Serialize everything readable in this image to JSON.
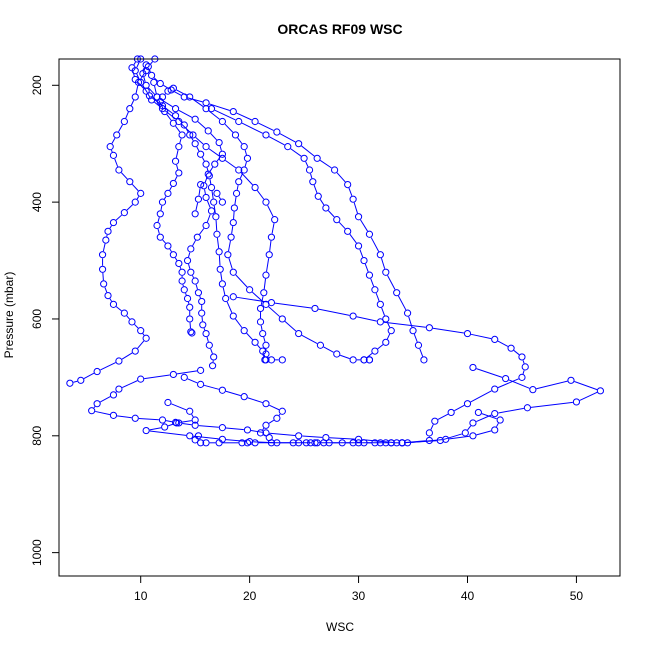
{
  "chart_data": {
    "type": "line",
    "title": "ORCAS RF09 WSC",
    "xlabel": "WSC",
    "ylabel": "Pressure (mbar)",
    "xlim": [
      2.5,
      54
    ],
    "ylim": [
      1040,
      155
    ],
    "y_reversed": true,
    "x_ticks": [
      10,
      20,
      30,
      40,
      50
    ],
    "y_ticks": [
      200,
      400,
      600,
      800,
      1000
    ],
    "grid": false,
    "marker": "open-circle",
    "color": "#0000ff",
    "series": [
      {
        "points": [
          [
            11.3,
            155
          ],
          [
            10.7,
            168
          ],
          [
            11.0,
            183
          ],
          [
            11.8,
            197
          ],
          [
            12.8,
            208
          ],
          [
            14.0,
            220
          ],
          [
            16.0,
            230
          ],
          [
            18.5,
            245
          ],
          [
            20.5,
            262
          ],
          [
            22.5,
            280
          ],
          [
            24.5,
            300
          ],
          [
            26.2,
            325
          ],
          [
            27.8,
            345
          ],
          [
            29.0,
            370
          ],
          [
            29.5,
            395
          ],
          [
            30.0,
            425
          ],
          [
            31.0,
            455
          ],
          [
            32.0,
            490
          ],
          [
            32.5,
            520
          ],
          [
            33.5,
            555
          ],
          [
            34.5,
            590
          ],
          [
            35.0,
            620
          ],
          [
            35.5,
            645
          ],
          [
            36.0,
            670
          ]
        ]
      },
      {
        "points": [
          [
            9.7,
            155
          ],
          [
            9.2,
            170
          ],
          [
            9.5,
            190
          ],
          [
            10.5,
            210
          ],
          [
            11.0,
            225
          ],
          [
            12.0,
            240
          ],
          [
            13.5,
            262
          ],
          [
            14.8,
            285
          ],
          [
            16.0,
            305
          ],
          [
            17.5,
            325
          ],
          [
            19.0,
            345
          ],
          [
            20.5,
            375
          ],
          [
            21.5,
            400
          ],
          [
            22.3,
            430
          ],
          [
            22.0,
            460
          ],
          [
            21.8,
            490
          ],
          [
            21.5,
            525
          ],
          [
            21.3,
            555
          ],
          [
            21.0,
            582
          ],
          [
            21.0,
            605
          ],
          [
            21.2,
            625
          ],
          [
            21.5,
            645
          ],
          [
            21.5,
            660
          ],
          [
            21.4,
            670
          ],
          [
            22.0,
            670
          ],
          [
            23.0,
            670
          ]
        ]
      },
      {
        "points": [
          [
            10.0,
            155
          ],
          [
            9.5,
            175
          ],
          [
            10.0,
            195
          ],
          [
            10.8,
            218
          ],
          [
            12.0,
            235
          ],
          [
            13.2,
            252
          ],
          [
            14.0,
            268
          ],
          [
            14.5,
            285
          ],
          [
            15.0,
            300
          ],
          [
            15.5,
            318
          ],
          [
            16.0,
            335
          ],
          [
            16.3,
            355
          ],
          [
            16.5,
            375
          ],
          [
            16.7,
            400
          ],
          [
            16.9,
            425
          ],
          [
            17.0,
            455
          ],
          [
            17.2,
            485
          ],
          [
            17.3,
            515
          ],
          [
            17.5,
            540
          ],
          [
            17.8,
            565
          ],
          [
            18.5,
            595
          ],
          [
            19.5,
            620
          ],
          [
            20.5,
            640
          ],
          [
            21.2,
            655
          ],
          [
            21.5,
            670
          ]
        ]
      },
      {
        "points": [
          [
            10.5,
            165
          ],
          [
            10.2,
            180
          ],
          [
            10.5,
            200
          ],
          [
            11.5,
            220
          ],
          [
            13.2,
            240
          ],
          [
            15.0,
            258
          ],
          [
            16.2,
            278
          ],
          [
            17.2,
            298
          ],
          [
            17.5,
            318
          ],
          [
            16.8,
            335
          ],
          [
            16.2,
            352
          ],
          [
            15.8,
            372
          ],
          [
            16.0,
            392
          ],
          [
            16.5,
            415
          ],
          [
            16.0,
            440
          ],
          [
            15.2,
            460
          ],
          [
            14.6,
            480
          ],
          [
            14.3,
            500
          ],
          [
            14.6,
            520
          ],
          [
            15.0,
            535
          ],
          [
            15.3,
            555
          ],
          [
            15.6,
            570
          ],
          [
            15.6,
            590
          ],
          [
            15.7,
            610
          ],
          [
            16.0,
            625
          ],
          [
            16.3,
            645
          ],
          [
            16.7,
            665
          ],
          [
            16.6,
            680
          ]
        ]
      },
      {
        "points": [
          [
            10.5,
            175
          ],
          [
            9.8,
            195
          ],
          [
            9.5,
            220
          ],
          [
            9.0,
            240
          ],
          [
            8.5,
            262
          ],
          [
            7.8,
            285
          ],
          [
            7.2,
            305
          ],
          [
            7.5,
            320
          ],
          [
            8.0,
            345
          ],
          [
            9.0,
            365
          ],
          [
            10.0,
            385
          ],
          [
            9.5,
            400
          ],
          [
            8.5,
            418
          ],
          [
            7.5,
            435
          ],
          [
            7.0,
            450
          ],
          [
            6.8,
            465
          ],
          [
            6.5,
            490
          ],
          [
            6.5,
            515
          ],
          [
            6.6,
            540
          ],
          [
            7.0,
            560
          ],
          [
            7.5,
            575
          ],
          [
            8.5,
            590
          ],
          [
            9.2,
            605
          ],
          [
            10.0,
            620
          ],
          [
            10.5,
            633
          ],
          [
            9.5,
            655
          ],
          [
            8.0,
            672
          ],
          [
            6.0,
            690
          ],
          [
            4.5,
            705
          ],
          [
            3.5,
            710
          ]
        ]
      },
      {
        "points": [
          [
            11.2,
            195
          ],
          [
            11.5,
            220
          ],
          [
            12.2,
            245
          ],
          [
            13.0,
            265
          ],
          [
            13.8,
            285
          ],
          [
            13.5,
            305
          ],
          [
            13.2,
            330
          ],
          [
            13.5,
            350
          ],
          [
            13.0,
            368
          ],
          [
            12.5,
            385
          ],
          [
            12.0,
            400
          ],
          [
            11.8,
            420
          ],
          [
            11.5,
            440
          ],
          [
            11.8,
            460
          ],
          [
            12.5,
            475
          ],
          [
            13.0,
            490
          ],
          [
            13.5,
            505
          ],
          [
            13.8,
            520
          ],
          [
            13.8,
            535
          ],
          [
            14.0,
            550
          ],
          [
            14.3,
            565
          ],
          [
            14.5,
            580
          ],
          [
            14.5,
            600
          ],
          [
            14.6,
            622
          ],
          [
            14.7,
            624
          ]
        ]
      },
      {
        "points": [
          [
            13.0,
            205
          ],
          [
            14.5,
            220
          ],
          [
            16.0,
            240
          ],
          [
            17.5,
            262
          ],
          [
            18.7,
            285
          ],
          [
            19.5,
            305
          ],
          [
            19.8,
            325
          ],
          [
            19.5,
            345
          ],
          [
            19.0,
            365
          ],
          [
            18.8,
            385
          ],
          [
            18.6,
            410
          ],
          [
            18.5,
            435
          ],
          [
            18.3,
            460
          ],
          [
            18.0,
            490
          ],
          [
            18.5,
            520
          ],
          [
            20.0,
            550
          ],
          [
            21.5,
            575
          ],
          [
            23.0,
            600
          ],
          [
            24.5,
            625
          ],
          [
            26.5,
            645
          ],
          [
            28.0,
            660
          ],
          [
            29.5,
            670
          ],
          [
            30.5,
            670
          ],
          [
            31.0,
            670
          ]
        ]
      },
      {
        "points": [
          [
            16.5,
            240
          ],
          [
            19.0,
            262
          ],
          [
            21.5,
            285
          ],
          [
            23.5,
            305
          ],
          [
            25.0,
            325
          ],
          [
            25.5,
            345
          ],
          [
            25.8,
            365
          ],
          [
            26.3,
            390
          ],
          [
            27.0,
            410
          ],
          [
            28.0,
            430
          ],
          [
            29.0,
            450
          ],
          [
            30.0,
            475
          ],
          [
            30.5,
            500
          ],
          [
            31.0,
            525
          ],
          [
            31.5,
            550
          ],
          [
            32.0,
            575
          ],
          [
            32.5,
            600
          ],
          [
            33.0,
            620
          ],
          [
            32.5,
            640
          ],
          [
            31.5,
            655
          ],
          [
            30.5,
            670
          ],
          [
            31.0,
            670
          ]
        ]
      },
      {
        "points": [
          [
            12.5,
            210
          ],
          [
            12.0,
            220
          ],
          [
            11.8,
            228
          ]
        ]
      },
      {
        "points": [
          [
            15.5,
            370
          ],
          [
            15.3,
            395
          ],
          [
            15.0,
            420
          ]
        ]
      },
      {
        "points": [
          [
            17.0,
            385
          ],
          [
            17.5,
            400
          ]
        ]
      },
      {
        "points": [
          [
            18.5,
            562
          ],
          [
            22.0,
            572
          ],
          [
            26.0,
            582
          ],
          [
            29.5,
            595
          ],
          [
            32.0,
            605
          ],
          [
            36.5,
            615
          ],
          [
            40.0,
            625
          ],
          [
            42.5,
            635
          ],
          [
            44.0,
            650
          ],
          [
            45.0,
            665
          ],
          [
            45.3,
            682
          ],
          [
            45.0,
            700
          ],
          [
            42.5,
            720
          ],
          [
            40.0,
            745
          ],
          [
            38.5,
            760
          ],
          [
            37.0,
            775
          ],
          [
            36.5,
            795
          ],
          [
            36.5,
            808
          ],
          [
            34.0,
            812
          ]
        ]
      },
      {
        "points": [
          [
            40.5,
            683
          ],
          [
            43.5,
            702
          ],
          [
            46.0,
            721
          ],
          [
            49.5,
            705
          ],
          [
            52.2,
            723
          ],
          [
            50.0,
            742
          ],
          [
            45.5,
            752
          ],
          [
            42.5,
            762
          ],
          [
            40.5,
            778
          ],
          [
            39.8,
            795
          ],
          [
            37.5,
            808
          ],
          [
            34.0,
            812
          ]
        ]
      },
      {
        "points": [
          [
            15.5,
            688
          ],
          [
            13.0,
            695
          ],
          [
            10.0,
            703
          ],
          [
            8.0,
            720
          ],
          [
            7.5,
            730
          ],
          [
            6.0,
            745
          ],
          [
            5.5,
            757
          ],
          [
            7.5,
            765
          ],
          [
            9.5,
            770
          ],
          [
            12.0,
            773
          ],
          [
            13.2,
            777
          ],
          [
            13.5,
            778
          ],
          [
            15.0,
            782
          ],
          [
            17.5,
            786
          ],
          [
            19.8,
            790
          ],
          [
            21.5,
            795
          ],
          [
            24.5,
            800
          ],
          [
            27.0,
            803
          ],
          [
            30.0,
            806
          ],
          [
            33.5,
            812
          ]
        ]
      },
      {
        "points": [
          [
            12.5,
            743
          ],
          [
            14.5,
            758
          ],
          [
            15.0,
            773
          ],
          [
            13.3,
            778
          ],
          [
            12.2,
            785
          ],
          [
            10.5,
            791
          ],
          [
            14.5,
            800
          ],
          [
            17.5,
            806
          ],
          [
            20.0,
            810
          ],
          [
            22.5,
            812
          ],
          [
            26.0,
            812
          ],
          [
            30.0,
            812
          ],
          [
            33.0,
            812
          ]
        ]
      },
      {
        "points": [
          [
            41.0,
            760
          ],
          [
            43.0,
            773
          ],
          [
            42.5,
            790
          ],
          [
            40.5,
            800
          ],
          [
            38.0,
            806
          ],
          [
            34.5,
            812
          ]
        ]
      },
      {
        "points": [
          [
            14.0,
            700
          ],
          [
            15.5,
            712
          ],
          [
            17.5,
            722
          ],
          [
            19.5,
            733
          ],
          [
            21.5,
            745
          ],
          [
            23.0,
            758
          ],
          [
            22.5,
            770
          ],
          [
            21.5,
            782
          ],
          [
            21.0,
            795
          ],
          [
            21.8,
            803
          ],
          [
            22.0,
            812
          ]
        ]
      },
      {
        "points": [
          [
            15.3,
            800
          ],
          [
            15.0,
            807
          ],
          [
            15.5,
            812
          ],
          [
            16.0,
            812
          ],
          [
            17.2,
            812
          ],
          [
            19.3,
            812
          ],
          [
            19.8,
            812
          ],
          [
            20.5,
            812
          ],
          [
            24.0,
            812
          ],
          [
            24.5,
            812
          ],
          [
            25.2,
            812
          ],
          [
            25.6,
            812
          ],
          [
            26.2,
            812
          ],
          [
            26.8,
            812
          ],
          [
            27.3,
            812
          ],
          [
            28.5,
            812
          ],
          [
            29.5,
            812
          ],
          [
            30.5,
            812
          ],
          [
            31.5,
            812
          ],
          [
            32.0,
            812
          ],
          [
            32.5,
            812
          ],
          [
            33.0,
            812
          ],
          [
            34.0,
            812
          ]
        ]
      }
    ]
  }
}
